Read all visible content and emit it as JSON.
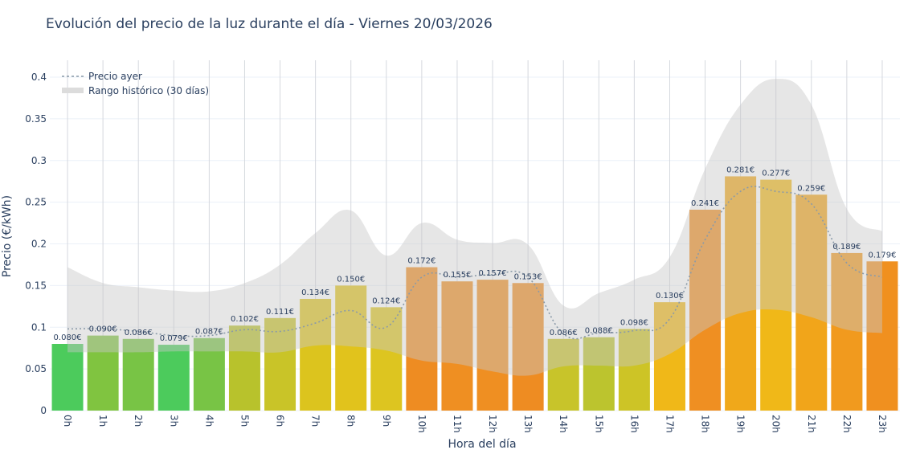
{
  "title": "Evolución del precio de la luz durante el día - Viernes 20/03/2026",
  "chart_data": {
    "type": "bar",
    "title": "Evolución del precio de la luz durante el día - Viernes 20/03/2026",
    "xlabel": "Hora del día",
    "ylabel": "Precio (€/kWh)",
    "ylim": [
      0,
      0.42
    ],
    "yticks": [
      0,
      0.05,
      0.1,
      0.15,
      0.2,
      0.25,
      0.3,
      0.35,
      0.4
    ],
    "ytick_labels": [
      "0",
      "0.05",
      "0.1",
      "0.15",
      "0.2",
      "0.25",
      "0.3",
      "0.35",
      "0.4"
    ],
    "grid": true,
    "legend": "top-left",
    "categories": [
      "0h",
      "1h",
      "2h",
      "3h",
      "4h",
      "5h",
      "6h",
      "7h",
      "8h",
      "9h",
      "10h",
      "11h",
      "12h",
      "13h",
      "14h",
      "15h",
      "16h",
      "17h",
      "18h",
      "19h",
      "20h",
      "21h",
      "22h",
      "23h"
    ],
    "values": [
      0.08,
      0.09,
      0.086,
      0.079,
      0.087,
      0.102,
      0.111,
      0.134,
      0.15,
      0.124,
      0.172,
      0.155,
      0.157,
      0.153,
      0.086,
      0.088,
      0.098,
      0.13,
      0.241,
      0.281,
      0.277,
      0.259,
      0.189,
      0.179
    ],
    "data_labels": [
      "0.080€",
      "0.090€",
      "0.086€",
      "0.079€",
      "0.087€",
      "0.102€",
      "0.111€",
      "0.134€",
      "0.150€",
      "0.124€",
      "0.172€",
      "0.155€",
      "0.157€",
      "0.153€",
      "0.086€",
      "0.088€",
      "0.098€",
      "0.130€",
      "0.241€",
      "0.281€",
      "0.277€",
      "0.259€",
      "0.189€",
      "0.179€"
    ],
    "bar_colors": [
      "#4ccb5c",
      "#80c440",
      "#78c445",
      "#4ccb5c",
      "#78c445",
      "#b8c22c",
      "#c9c428",
      "#dcc41e",
      "#e1c31c",
      "#ddc520",
      "#ee8c22",
      "#ef8f22",
      "#ef8f22",
      "#ee8c22",
      "#c8c42a",
      "#bcc42e",
      "#cdc426",
      "#f0b818",
      "#ef8f22",
      "#f0a81a",
      "#f0b818",
      "#f1a51a",
      "#f19a1e",
      "#f0901f"
    ],
    "series": [
      {
        "name": "Precio ayer",
        "type": "line",
        "style": "dotted",
        "color": "#8a9aa8",
        "values": [
          0.098,
          0.098,
          0.095,
          0.09,
          0.09,
          0.097,
          0.095,
          0.105,
          0.12,
          0.1,
          0.16,
          0.16,
          0.163,
          0.16,
          0.092,
          0.093,
          0.096,
          0.11,
          0.205,
          0.263,
          0.263,
          0.248,
          0.177,
          0.16
        ]
      },
      {
        "name": "Rango histórico (30 días)",
        "type": "band",
        "color": "#d3d3d3",
        "upper": [
          0.172,
          0.153,
          0.148,
          0.144,
          0.143,
          0.153,
          0.175,
          0.213,
          0.24,
          0.186,
          0.225,
          0.205,
          0.201,
          0.199,
          0.126,
          0.141,
          0.157,
          0.184,
          0.29,
          0.367,
          0.398,
          0.367,
          0.242,
          0.215
        ],
        "lower": [
          0.07,
          0.07,
          0.07,
          0.071,
          0.071,
          0.071,
          0.07,
          0.078,
          0.077,
          0.072,
          0.06,
          0.056,
          0.047,
          0.042,
          0.053,
          0.054,
          0.054,
          0.068,
          0.097,
          0.117,
          0.121,
          0.112,
          0.097,
          0.093
        ]
      }
    ]
  }
}
